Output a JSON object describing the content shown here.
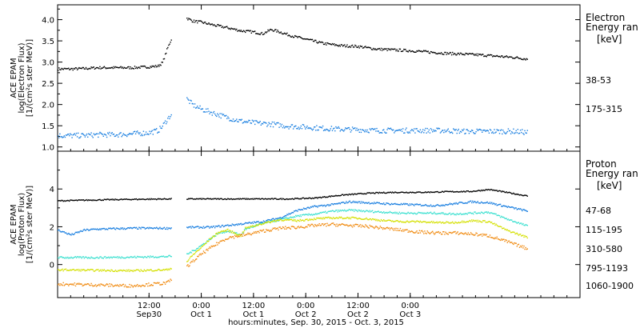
{
  "chart_data": [
    {
      "type": "scatter",
      "panel": "electron",
      "ylabel": [
        "ACE EPAM",
        "log(Electron Flux)",
        "[1/(cm²s ster MeV)]"
      ],
      "ylim": [
        0.9,
        4.35
      ],
      "yticks": [
        1.0,
        1.5,
        2.0,
        2.5,
        3.0,
        3.5,
        4.0
      ],
      "ytick_labels": [
        "1.0",
        "1.5",
        "2.0",
        "2.5",
        "3.0",
        "3.5",
        "4.0"
      ],
      "legend_title": [
        "Electron",
        "Energy ran"
      ],
      "legend_unit": "[keV]",
      "gap_hours": [
        17.0,
        20.5
      ],
      "series": [
        {
          "name": "38-53",
          "color": "#000000",
          "points": [
            [
              -9,
              2.85
            ],
            [
              -6,
              2.85
            ],
            [
              -3,
              2.86
            ],
            [
              0,
              2.88
            ],
            [
              4,
              2.88
            ],
            [
              8,
              2.88
            ],
            [
              12,
              2.9
            ],
            [
              14,
              2.92
            ],
            [
              15,
              3.0
            ],
            [
              16,
              3.3
            ],
            [
              17,
              3.55
            ],
            [
              20.5,
              4.05
            ],
            [
              22,
              3.98
            ],
            [
              24,
              3.95
            ],
            [
              27,
              3.88
            ],
            [
              30,
              3.82
            ],
            [
              33,
              3.75
            ],
            [
              36,
              3.72
            ],
            [
              38,
              3.68
            ],
            [
              40,
              3.78
            ],
            [
              42,
              3.72
            ],
            [
              45,
              3.62
            ],
            [
              48,
              3.55
            ],
            [
              52,
              3.45
            ],
            [
              56,
              3.4
            ],
            [
              60,
              3.38
            ],
            [
              64,
              3.32
            ],
            [
              68,
              3.3
            ],
            [
              72,
              3.28
            ],
            [
              76,
              3.25
            ],
            [
              80,
              3.22
            ],
            [
              84,
              3.2
            ],
            [
              88,
              3.18
            ],
            [
              92,
              3.15
            ],
            [
              96,
              3.12
            ],
            [
              99,
              3.08
            ]
          ],
          "noise": 0.03
        },
        {
          "name": "175-315",
          "color": "#1a7fe0",
          "points": [
            [
              -9,
              1.28
            ],
            [
              -6,
              1.28
            ],
            [
              -3,
              1.28
            ],
            [
              0,
              1.3
            ],
            [
              4,
              1.3
            ],
            [
              8,
              1.32
            ],
            [
              12,
              1.35
            ],
            [
              14,
              1.4
            ],
            [
              15,
              1.5
            ],
            [
              16,
              1.65
            ],
            [
              17,
              1.78
            ],
            [
              20.5,
              2.15
            ],
            [
              22,
              2.0
            ],
            [
              24,
              1.9
            ],
            [
              27,
              1.8
            ],
            [
              30,
              1.7
            ],
            [
              33,
              1.62
            ],
            [
              36,
              1.58
            ],
            [
              40,
              1.55
            ],
            [
              44,
              1.5
            ],
            [
              48,
              1.48
            ],
            [
              52,
              1.45
            ],
            [
              56,
              1.43
            ],
            [
              60,
              1.42
            ],
            [
              64,
              1.4
            ],
            [
              68,
              1.4
            ],
            [
              72,
              1.4
            ],
            [
              76,
              1.4
            ],
            [
              80,
              1.4
            ],
            [
              84,
              1.38
            ],
            [
              88,
              1.38
            ],
            [
              92,
              1.38
            ],
            [
              96,
              1.38
            ],
            [
              99,
              1.35
            ]
          ],
          "noise": 0.06
        }
      ]
    },
    {
      "type": "scatter",
      "panel": "proton",
      "ylabel": [
        "ACE EPAM",
        "log(Proton Flux)",
        "[1/(cm²s ster MeV)]"
      ],
      "ylim": [
        -1.75,
        6.0
      ],
      "yticks": [
        0,
        2,
        4
      ],
      "ytick_labels": [
        "0",
        "2",
        "4"
      ],
      "legend_title": [
        "Proton",
        "Energy ran"
      ],
      "legend_unit": "[keV]",
      "gap_hours": [
        17.0,
        20.5
      ],
      "series": [
        {
          "name": "47-68",
          "color": "#000000",
          "points": [
            [
              -9,
              3.4
            ],
            [
              0,
              3.45
            ],
            [
              8,
              3.48
            ],
            [
              16,
              3.5
            ],
            [
              20.5,
              3.5
            ],
            [
              28,
              3.5
            ],
            [
              36,
              3.5
            ],
            [
              44,
              3.5
            ],
            [
              50,
              3.55
            ],
            [
              56,
              3.7
            ],
            [
              62,
              3.8
            ],
            [
              68,
              3.85
            ],
            [
              74,
              3.85
            ],
            [
              80,
              3.88
            ],
            [
              86,
              3.9
            ],
            [
              90,
              4.0
            ],
            [
              94,
              3.85
            ],
            [
              99,
              3.65
            ]
          ],
          "noise": 0.03
        },
        {
          "name": "115-195",
          "color": "#1a7fe0",
          "points": [
            [
              -9,
              1.85
            ],
            [
              -6,
              1.6
            ],
            [
              -3,
              1.85
            ],
            [
              0,
              1.9
            ],
            [
              8,
              1.95
            ],
            [
              16,
              1.95
            ],
            [
              20.5,
              2.0
            ],
            [
              26,
              2.0
            ],
            [
              30,
              2.1
            ],
            [
              34,
              2.2
            ],
            [
              38,
              2.3
            ],
            [
              42,
              2.5
            ],
            [
              46,
              2.9
            ],
            [
              50,
              3.1
            ],
            [
              54,
              3.2
            ],
            [
              58,
              3.35
            ],
            [
              62,
              3.3
            ],
            [
              66,
              3.25
            ],
            [
              72,
              3.2
            ],
            [
              78,
              3.15
            ],
            [
              82,
              3.25
            ],
            [
              86,
              3.35
            ],
            [
              90,
              3.3
            ],
            [
              94,
              3.1
            ],
            [
              99,
              2.85
            ]
          ],
          "noise": 0.05
        },
        {
          "name": "310-580",
          "color": "#3de0d0",
          "points": [
            [
              -9,
              0.4
            ],
            [
              0,
              0.4
            ],
            [
              8,
              0.42
            ],
            [
              16,
              0.45
            ],
            [
              20.5,
              0.55
            ],
            [
              22,
              0.75
            ],
            [
              24,
              1.05
            ],
            [
              26,
              1.4
            ],
            [
              28,
              1.7
            ],
            [
              30,
              1.8
            ],
            [
              33,
              1.6
            ],
            [
              34,
              1.9
            ],
            [
              38,
              2.2
            ],
            [
              42,
              2.4
            ],
            [
              46,
              2.6
            ],
            [
              50,
              2.7
            ],
            [
              54,
              2.85
            ],
            [
              58,
              2.9
            ],
            [
              62,
              2.85
            ],
            [
              66,
              2.8
            ],
            [
              70,
              2.75
            ],
            [
              74,
              2.75
            ],
            [
              78,
              2.75
            ],
            [
              82,
              2.7
            ],
            [
              86,
              2.75
            ],
            [
              90,
              2.8
            ],
            [
              94,
              2.45
            ],
            [
              99,
              2.05
            ]
          ],
          "noise": 0.05
        },
        {
          "name": "795-1193",
          "color": "#d4e000",
          "points": [
            [
              -9,
              -0.25
            ],
            [
              0,
              -0.28
            ],
            [
              8,
              -0.3
            ],
            [
              16,
              -0.25
            ],
            [
              20.5,
              0.15
            ],
            [
              22,
              0.55
            ],
            [
              24,
              0.95
            ],
            [
              26,
              1.4
            ],
            [
              28,
              1.75
            ],
            [
              30,
              1.85
            ],
            [
              33,
              1.55
            ],
            [
              34,
              1.95
            ],
            [
              38,
              2.2
            ],
            [
              42,
              2.4
            ],
            [
              46,
              2.35
            ],
            [
              50,
              2.45
            ],
            [
              54,
              2.5
            ],
            [
              58,
              2.5
            ],
            [
              62,
              2.45
            ],
            [
              66,
              2.35
            ],
            [
              70,
              2.3
            ],
            [
              74,
              2.3
            ],
            [
              78,
              2.25
            ],
            [
              82,
              2.25
            ],
            [
              86,
              2.35
            ],
            [
              90,
              2.3
            ],
            [
              94,
              1.85
            ],
            [
              99,
              1.45
            ]
          ],
          "noise": 0.05
        },
        {
          "name": "1060-1900",
          "color": "#f08a10",
          "points": [
            [
              -9,
              -1.0
            ],
            [
              0,
              -1.05
            ],
            [
              8,
              -1.1
            ],
            [
              16,
              -0.95
            ],
            [
              20.5,
              -0.1
            ],
            [
              22,
              0.2
            ],
            [
              24,
              0.6
            ],
            [
              26,
              0.9
            ],
            [
              28,
              1.2
            ],
            [
              30,
              1.45
            ],
            [
              34,
              1.6
            ],
            [
              38,
              1.8
            ],
            [
              42,
              1.95
            ],
            [
              46,
              2.0
            ],
            [
              50,
              2.1
            ],
            [
              54,
              2.15
            ],
            [
              58,
              2.1
            ],
            [
              62,
              2.05
            ],
            [
              66,
              1.95
            ],
            [
              70,
              1.85
            ],
            [
              74,
              1.75
            ],
            [
              78,
              1.7
            ],
            [
              82,
              1.7
            ],
            [
              86,
              1.65
            ],
            [
              90,
              1.55
            ],
            [
              94,
              1.25
            ],
            [
              99,
              0.85
            ]
          ],
          "noise": 0.08
        }
      ]
    }
  ],
  "x_axis": {
    "unit": "hours from Sep 30 00:00",
    "range": [
      -9,
      111
    ],
    "ticks": [
      {
        "hour": 12,
        "time": "12:00",
        "date": "Sep30"
      },
      {
        "hour": 24,
        "time": "0:00",
        "date": "Oct 1"
      },
      {
        "hour": 36,
        "time": "12:00",
        "date": "Oct 1"
      },
      {
        "hour": 48,
        "time": "0:00",
        "date": "Oct 2"
      },
      {
        "hour": 60,
        "time": "12:00",
        "date": "Oct 2"
      },
      {
        "hour": 72,
        "time": "0:00",
        "date": "Oct 3"
      }
    ],
    "minor_step_hours": 3,
    "label": "hours:minutes, Sep. 30, 2015 - Oct. 3, 2015"
  }
}
